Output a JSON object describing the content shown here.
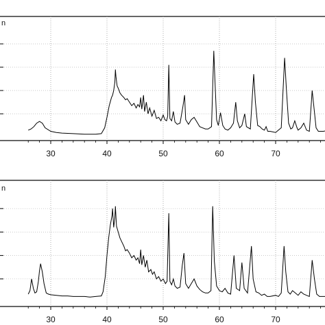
{
  "figure": {
    "corner_text": "n"
  },
  "chart_data": [
    {
      "type": "line",
      "title": "",
      "xlabel": "",
      "ylabel": "",
      "x_range": [
        26,
        83
      ],
      "y_range": [
        0,
        100
      ],
      "x_ticks": [
        30,
        40,
        50,
        60,
        70
      ],
      "y_ticks": [
        20,
        40,
        60,
        80
      ],
      "grid": "vertical-and-horizontal dotted",
      "x_tick_labels": [
        "30",
        "40",
        "50",
        "60",
        "70"
      ],
      "series": [
        {
          "points": [
            [
              26,
              6
            ],
            [
              26.5,
              7
            ],
            [
              27,
              9
            ],
            [
              27.5,
              12
            ],
            [
              28,
              13.5
            ],
            [
              28.5,
              12
            ],
            [
              29,
              8
            ],
            [
              30,
              5
            ],
            [
              31,
              4
            ],
            [
              32,
              3.5
            ],
            [
              34,
              3
            ],
            [
              36,
              2.5
            ],
            [
              38,
              2.5
            ],
            [
              39,
              3
            ],
            [
              39.6,
              8
            ],
            [
              40,
              17
            ],
            [
              40.4,
              27
            ],
            [
              40.8,
              34
            ],
            [
              41,
              36
            ],
            [
              41.2,
              40
            ],
            [
              41.4,
              47
            ],
            [
              41.5,
              58
            ],
            [
              41.6,
              52
            ],
            [
              41.8,
              44
            ],
            [
              42,
              42
            ],
            [
              42.3,
              38
            ],
            [
              42.6,
              36
            ],
            [
              43,
              34
            ],
            [
              43.3,
              32
            ],
            [
              43.6,
              33
            ],
            [
              44,
              30
            ],
            [
              44.4,
              27
            ],
            [
              44.8,
              29
            ],
            [
              45.2,
              25
            ],
            [
              45.5,
              28
            ],
            [
              45.8,
              26
            ],
            [
              46.0,
              34
            ],
            [
              46.2,
              24
            ],
            [
              46.5,
              36
            ],
            [
              46.7,
              22
            ],
            [
              47.0,
              30
            ],
            [
              47.3,
              20
            ],
            [
              47.6,
              25
            ],
            [
              48,
              18
            ],
            [
              48.4,
              23
            ],
            [
              48.8,
              16
            ],
            [
              49.2,
              17
            ],
            [
              49.6,
              14
            ],
            [
              50.0,
              19
            ],
            [
              50.3,
              15
            ],
            [
              50.6,
              14
            ],
            [
              50.8,
              18
            ],
            [
              51.0,
              62
            ],
            [
              51.2,
              16
            ],
            [
              51.5,
              14
            ],
            [
              51.8,
              22
            ],
            [
              52.1,
              13
            ],
            [
              52.5,
              11
            ],
            [
              53,
              12
            ],
            [
              53.5,
              26
            ],
            [
              53.8,
              36
            ],
            [
              54,
              15
            ],
            [
              54.5,
              11
            ],
            [
              55,
              15
            ],
            [
              55.5,
              17
            ],
            [
              56,
              13
            ],
            [
              56.5,
              9
            ],
            [
              57,
              8
            ],
            [
              57.5,
              7
            ],
            [
              58,
              7
            ],
            [
              58.6,
              9
            ],
            [
              59.0,
              74
            ],
            [
              59.2,
              50
            ],
            [
              59.5,
              15
            ],
            [
              59.8,
              10
            ],
            [
              60.2,
              21
            ],
            [
              60.6,
              10
            ],
            [
              61,
              7
            ],
            [
              61.5,
              6
            ],
            [
              62,
              8
            ],
            [
              62.5,
              12
            ],
            [
              62.9,
              30
            ],
            [
              63.2,
              14
            ],
            [
              63.6,
              8
            ],
            [
              64,
              10
            ],
            [
              64.5,
              20
            ],
            [
              64.8,
              9
            ],
            [
              65.5,
              7
            ],
            [
              66.1,
              54
            ],
            [
              66.4,
              30
            ],
            [
              66.8,
              10
            ],
            [
              67.2,
              9
            ],
            [
              67.6,
              7
            ],
            [
              68,
              6
            ],
            [
              68.3,
              9
            ],
            [
              68.6,
              5
            ],
            [
              69,
              5
            ],
            [
              70,
              4
            ],
            [
              70.5,
              6
            ],
            [
              71,
              8
            ],
            [
              71.6,
              68
            ],
            [
              71.9,
              42
            ],
            [
              72.3,
              12
            ],
            [
              72.7,
              7
            ],
            [
              73,
              8
            ],
            [
              73.4,
              14
            ],
            [
              73.8,
              8
            ],
            [
              74,
              6
            ],
            [
              74.5,
              8
            ],
            [
              75,
              12
            ],
            [
              75.5,
              6
            ],
            [
              76,
              5
            ],
            [
              76.5,
              40
            ],
            [
              76.8,
              26
            ],
            [
              77.2,
              8
            ],
            [
              77.6,
              5
            ],
            [
              78.5,
              5
            ],
            [
              79.5,
              6
            ],
            [
              80.5,
              7
            ],
            [
              82,
              6
            ],
            [
              83,
              6
            ]
          ]
        }
      ]
    },
    {
      "type": "line",
      "title": "",
      "xlabel": "",
      "ylabel": "",
      "x_range": [
        26,
        83
      ],
      "y_range": [
        0,
        100
      ],
      "x_ticks": [
        30,
        40,
        50,
        60,
        70
      ],
      "y_ticks": [
        20,
        40,
        60,
        80
      ],
      "grid": "vertical-and-horizontal dotted",
      "x_tick_labels": [
        "30",
        "40",
        "50",
        "60",
        "70"
      ],
      "series": [
        {
          "points": [
            [
              26,
              7
            ],
            [
              26.3,
              10
            ],
            [
              26.6,
              20
            ],
            [
              26.9,
              12
            ],
            [
              27.2,
              8
            ],
            [
              27.5,
              9
            ],
            [
              27.8,
              18
            ],
            [
              28.0,
              27
            ],
            [
              28.2,
              33
            ],
            [
              28.5,
              26
            ],
            [
              28.8,
              16
            ],
            [
              29.2,
              8
            ],
            [
              29.6,
              7
            ],
            [
              30,
              6.5
            ],
            [
              31,
              6
            ],
            [
              32,
              5.5
            ],
            [
              33,
              5.5
            ],
            [
              34,
              5
            ],
            [
              35,
              5
            ],
            [
              36,
              5
            ],
            [
              37,
              4.5
            ],
            [
              38,
              5
            ],
            [
              39,
              5.5
            ],
            [
              39.3,
              9
            ],
            [
              39.7,
              22
            ],
            [
              40,
              40
            ],
            [
              40.3,
              55
            ],
            [
              40.6,
              66
            ],
            [
              40.9,
              74
            ],
            [
              41.0,
              80
            ],
            [
              41.2,
              64
            ],
            [
              41.4,
              72
            ],
            [
              41.5,
              82
            ],
            [
              41.7,
              65
            ],
            [
              42,
              60
            ],
            [
              42.3,
              55
            ],
            [
              42.6,
              52
            ],
            [
              43,
              48
            ],
            [
              43.3,
              44
            ],
            [
              43.6,
              45
            ],
            [
              44,
              42
            ],
            [
              44.4,
              38
            ],
            [
              44.8,
              40
            ],
            [
              45.2,
              36
            ],
            [
              45.5,
              38
            ],
            [
              45.8,
              33
            ],
            [
              46.0,
              45
            ],
            [
              46.2,
              32
            ],
            [
              46.5,
              40
            ],
            [
              46.8,
              30
            ],
            [
              47.1,
              36
            ],
            [
              47.4,
              26
            ],
            [
              47.8,
              28
            ],
            [
              48.1,
              24
            ],
            [
              48.4,
              26
            ],
            [
              48.8,
              20
            ],
            [
              49.2,
              22
            ],
            [
              49.6,
              18
            ],
            [
              50,
              20
            ],
            [
              50.4,
              16
            ],
            [
              50.7,
              18
            ],
            [
              51.0,
              76
            ],
            [
              51.2,
              18
            ],
            [
              51.5,
              15
            ],
            [
              51.8,
              20
            ],
            [
              52.1,
              14
            ],
            [
              52.5,
              12
            ],
            [
              53,
              13
            ],
            [
              53.4,
              32
            ],
            [
              53.7,
              42
            ],
            [
              54,
              16
            ],
            [
              54.5,
              12
            ],
            [
              55,
              16
            ],
            [
              55.5,
              20
            ],
            [
              56,
              14
            ],
            [
              56.5,
              11
            ],
            [
              57,
              9
            ],
            [
              57.5,
              8
            ],
            [
              58,
              8
            ],
            [
              58.5,
              10
            ],
            [
              58.8,
              82
            ],
            [
              59.1,
              35
            ],
            [
              59.5,
              14
            ],
            [
              60,
              10
            ],
            [
              60.5,
              9
            ],
            [
              61,
              12
            ],
            [
              61.5,
              8
            ],
            [
              62,
              7
            ],
            [
              62.6,
              40
            ],
            [
              63,
              12
            ],
            [
              63.6,
              10
            ],
            [
              64,
              34
            ],
            [
              64.4,
              12
            ],
            [
              65,
              8
            ],
            [
              65.7,
              48
            ],
            [
              66,
              20
            ],
            [
              66.5,
              9
            ],
            [
              67,
              8
            ],
            [
              67.5,
              6
            ],
            [
              68,
              7
            ],
            [
              68.5,
              5
            ],
            [
              69,
              5
            ],
            [
              70,
              6
            ],
            [
              70.5,
              5
            ],
            [
              71,
              8
            ],
            [
              71.5,
              48
            ],
            [
              71.8,
              26
            ],
            [
              72.2,
              9
            ],
            [
              72.6,
              7
            ],
            [
              73,
              10
            ],
            [
              73.5,
              8
            ],
            [
              74,
              6
            ],
            [
              74.5,
              9
            ],
            [
              75,
              7
            ],
            [
              75.5,
              6
            ],
            [
              76,
              5
            ],
            [
              76.5,
              36
            ],
            [
              76.9,
              20
            ],
            [
              77.3,
              7
            ],
            [
              77.8,
              5
            ],
            [
              79,
              5
            ],
            [
              80,
              7
            ],
            [
              81,
              6
            ],
            [
              83,
              6
            ]
          ]
        }
      ]
    }
  ]
}
